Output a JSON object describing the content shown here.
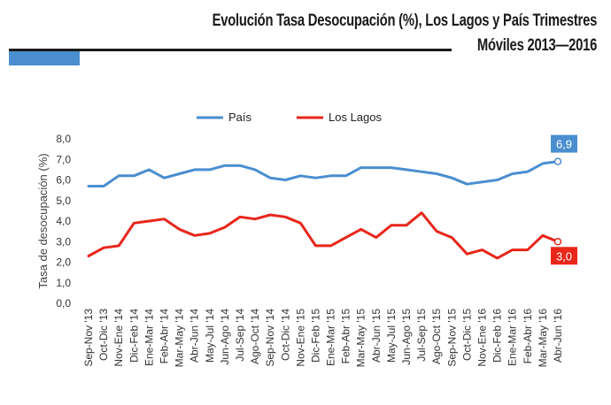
{
  "header": {
    "title_line1": "Evolución Tasa Desocupación (%), Los Lagos y País Trimestres",
    "title_line2": "Móviles 2013—2016"
  },
  "colors": {
    "pais": "#4a8ed0",
    "los_lagos": "#e8261a",
    "accent_bar": "#4a8ed0"
  },
  "chart_data": {
    "type": "line",
    "title": "Evolución Tasa Desocupación (%), Los Lagos y País Trimestres Móviles 2013—2016",
    "xlabel": "",
    "ylabel": "Tasa de desocupación (%)",
    "ylim": [
      0,
      8
    ],
    "yticks": [
      "0,0",
      "1,0",
      "2,0",
      "3,0",
      "4,0",
      "5,0",
      "6,0",
      "7,0",
      "8,0"
    ],
    "grid": false,
    "legend_position": "top",
    "categories": [
      "Sep-Nov '13",
      "Oct-Dic '13",
      "Nov-Ene '14",
      "Dic-Feb '14",
      "Ene-Mar '14",
      "Feb-Abr '14",
      "Mar-May '14",
      "Abr-Jun '14",
      "May-Jul '14",
      "Jun-Ago '14",
      "Jul-Sep '14",
      "Ago-Oct '14",
      "Sep-Nov '14",
      "Oct-Dic '14",
      "Nov-Ene '15",
      "Dic-Feb '15",
      "Ene-Mar '15",
      "Feb-Abr '15",
      "Mar-May '15",
      "Abr-Jun '15",
      "May-Jul '15",
      "Jun-Ago '15",
      "Jul-Sep '15",
      "Ago-Oct '15",
      "Sep-Nov '15",
      "Oct-Dic '15",
      "Nov-Ene '16",
      "Dic-Feb '16",
      "Ene-Mar '16",
      "Feb-Abr '16",
      "Mar-May '16",
      "Abr-Jun '16"
    ],
    "series": [
      {
        "name": "País",
        "color": "#4a8ed0",
        "values": [
          5.7,
          5.7,
          6.2,
          6.2,
          6.5,
          6.1,
          6.3,
          6.5,
          6.5,
          6.7,
          6.7,
          6.5,
          6.1,
          6.0,
          6.2,
          6.1,
          6.2,
          6.2,
          6.6,
          6.6,
          6.6,
          6.5,
          6.4,
          6.3,
          6.1,
          5.8,
          5.9,
          6.0,
          6.3,
          6.4,
          6.8,
          6.9
        ],
        "end_label": "6,9"
      },
      {
        "name": "Los Lagos",
        "color": "#e8261a",
        "values": [
          2.3,
          2.7,
          2.8,
          3.9,
          4.0,
          4.1,
          3.6,
          3.3,
          3.4,
          3.7,
          4.2,
          4.1,
          4.3,
          4.2,
          3.9,
          2.8,
          2.8,
          3.2,
          3.6,
          3.2,
          3.8,
          3.8,
          4.4,
          3.5,
          3.2,
          2.4,
          2.6,
          2.2,
          2.6,
          2.6,
          3.3,
          3.0
        ],
        "end_label": "3,0"
      }
    ]
  }
}
